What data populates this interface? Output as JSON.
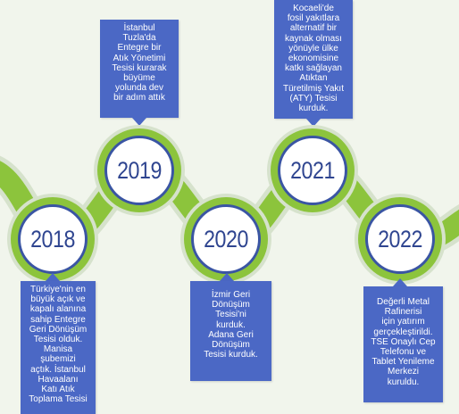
{
  "timeline": {
    "colors": {
      "track": "#8cc43c",
      "track_shadow": "#d6e2cc",
      "ring": "#3a55a3",
      "year_text": "#2f4590",
      "card": "#4b68c5"
    },
    "milestones": [
      {
        "year": "2018",
        "text": "Türkiye'nin en\nbüyük açık ve\nkapalı alanına\nsahip Entegre\nGeri Dönüşüm\nTesisi olduk.\nManisa\nşubemizi\naçtık. İstanbul\nHavaalanı\nKatı Atık\nToplama Tesisi"
      },
      {
        "year": "2019",
        "text": "İstanbul\nTuzla'da\nEntegre bir\nAtık Yönetimi\nTesisi kurarak\nbüyüme\nyolunda dev\nbir adım attık"
      },
      {
        "year": "2020",
        "text": "İzmir Geri\nDönüşüm\nTesisi'ni\nkurduk.\nAdana Geri\nDönüşüm\nTesisi kurduk."
      },
      {
        "year": "2021",
        "text": "Kocaeli'de\nfosil yakıtlara\nalternatif bir\nkaynak olması\nyönüyle ülke\nekonomisine\nkatkı sağlayan\nAtıktan\nTüretilmiş Yakıt\n(ATY) Tesisi\nkurduk."
      },
      {
        "year": "2022",
        "text": "Değerli Metal\nRafinerisi\niçin yatırım\ngerçekleştirildi.\nTSE Onaylı Cep\nTelefonu ve\nTablet Yenileme\nMerkezi\nkuruldu."
      }
    ]
  }
}
